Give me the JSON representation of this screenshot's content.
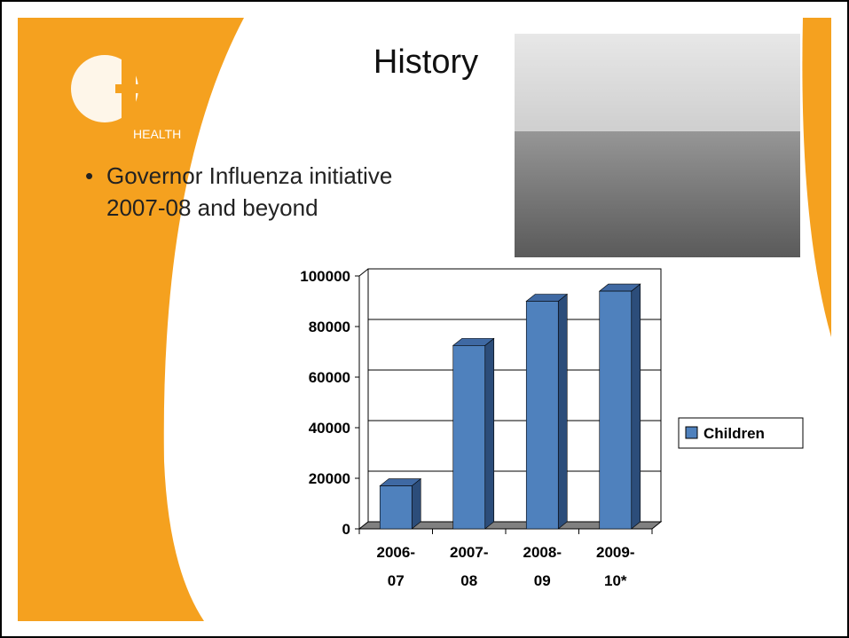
{
  "slide": {
    "title": "History",
    "bullet": "Governor Influenza initiative 2007-08 and beyond",
    "logo_text": "HEALTH"
  },
  "chart_data": {
    "type": "bar3d",
    "categories": [
      "2006-07",
      "2007-08",
      "2008-09",
      "2009-10*"
    ],
    "series": [
      {
        "name": "Children",
        "color": "#4f81bd",
        "values": [
          17000,
          72500,
          90000,
          94000
        ]
      }
    ],
    "ylim": [
      0,
      100000
    ],
    "yticks": [
      0,
      20000,
      40000,
      60000,
      80000,
      100000
    ],
    "grid": true,
    "legend": "right"
  }
}
